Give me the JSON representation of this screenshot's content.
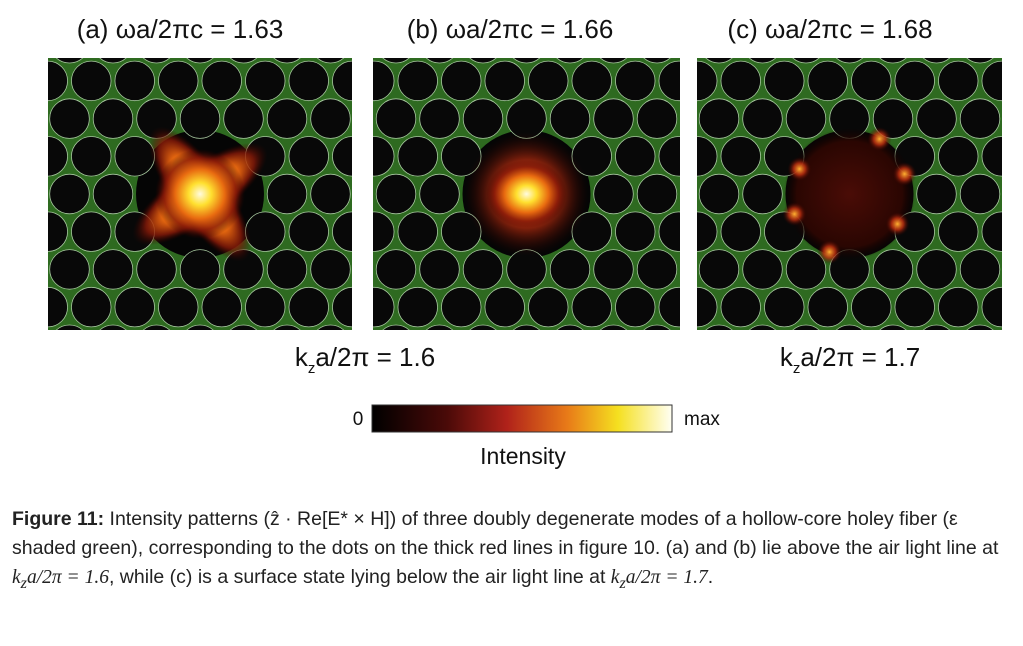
{
  "panels": [
    {
      "title": "(a) ωa/2πc = 1.63"
    },
    {
      "title": "(b) ωa/2πc = 1.66"
    },
    {
      "title": "(c) ωa/2πc = 1.68"
    }
  ],
  "kz_labels": [
    {
      "k": "k",
      "sub": "z",
      "rest": "a/2π = 1.6"
    },
    {
      "k": "k",
      "sub": "z",
      "rest": "a/2π = 1.7"
    }
  ],
  "colorbar": {
    "min_label": "0",
    "max_label": "max",
    "title": "Intensity"
  },
  "caption": {
    "label": "Figure 11:",
    "text_1": " Intensity patterns (ẑ · Re[E* × H]) of three doubly degenerate modes of a hollow-core holey fiber (ε shaded green), corresponding to the dots on the thick red lines in figure 10. (a) and (b) lie above the air light line at ",
    "math_1": {
      "k": "k",
      "sub": "z",
      "rest": "a/2π = 1.6"
    },
    "text_2": ", while (c) is a surface state lying below the air light line at ",
    "math_2": {
      "k": "k",
      "sub": "z",
      "rest": "a/2π = 1.7"
    },
    "text_3": "."
  }
}
